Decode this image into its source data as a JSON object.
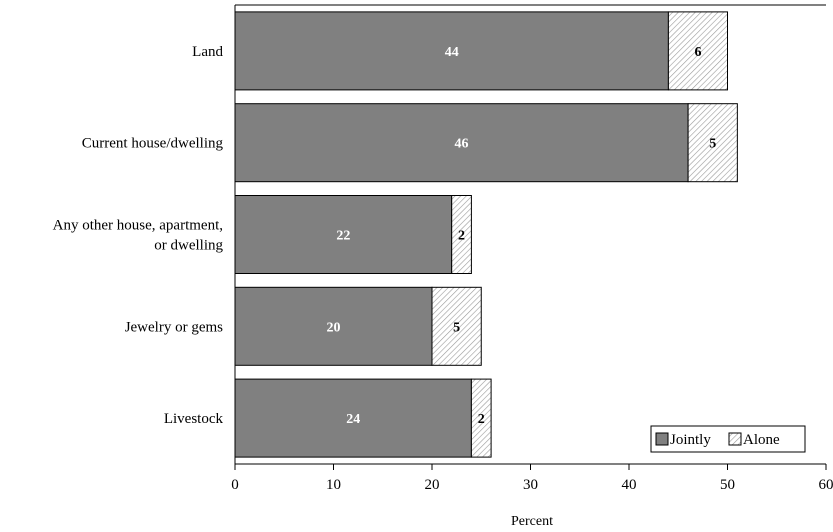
{
  "chart_data": {
    "type": "bar",
    "orientation": "horizontal",
    "stacked": true,
    "categories": [
      "Land",
      "Current house/dwelling",
      "Any other house, apartment, or dwelling",
      "Jewelry or gems",
      "Livestock"
    ],
    "category_lines": [
      [
        "Land"
      ],
      [
        "Current house/dwelling"
      ],
      [
        "Any other house, apartment,",
        "or dwelling"
      ],
      [
        "Jewelry or gems"
      ],
      [
        "Livestock"
      ]
    ],
    "series": [
      {
        "name": "Jointly",
        "values": [
          44,
          46,
          22,
          20,
          24
        ],
        "color": "#808080",
        "label_color": "#ffffff",
        "pattern": "solid"
      },
      {
        "name": "Alone",
        "values": [
          6,
          5,
          2,
          5,
          2
        ],
        "color": "#ffffff",
        "label_color": "#000000",
        "pattern": "diagonal-hatch"
      }
    ],
    "display_values": {
      "Jointly": [
        "44",
        "46",
        "22",
        "20",
        "24"
      ],
      "Alone": [
        "6",
        "5",
        "2",
        "5",
        "2"
      ]
    },
    "title": "",
    "xlabel": "Percent",
    "ylabel": "",
    "xlim": [
      0,
      60
    ],
    "xticks": [
      0,
      10,
      20,
      30,
      40,
      50,
      60
    ],
    "xtick_labels": [
      "0",
      "10",
      "20",
      "30",
      "40",
      "50",
      "60"
    ],
    "grid": false,
    "legend": {
      "position": "bottom-right",
      "entries": [
        "Jointly",
        "Alone"
      ]
    }
  }
}
